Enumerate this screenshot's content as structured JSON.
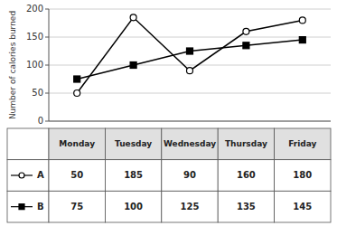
{
  "chart_data": {
    "type": "line",
    "categories": [
      "Monday",
      "Tuesday",
      "Wednesday",
      "Thursday",
      "Friday"
    ],
    "series": [
      {
        "name": "A",
        "color": "#000000",
        "marker": "circle",
        "values": [
          50,
          185,
          90,
          160,
          180
        ]
      },
      {
        "name": "B",
        "color": "#000000",
        "marker": "square",
        "values": [
          75,
          100,
          125,
          135,
          145
        ]
      }
    ],
    "y_label": "Number of calories burned",
    "ylim": [
      0,
      200
    ],
    "yticks": [
      0,
      50,
      100,
      150,
      200
    ],
    "grid": true
  }
}
